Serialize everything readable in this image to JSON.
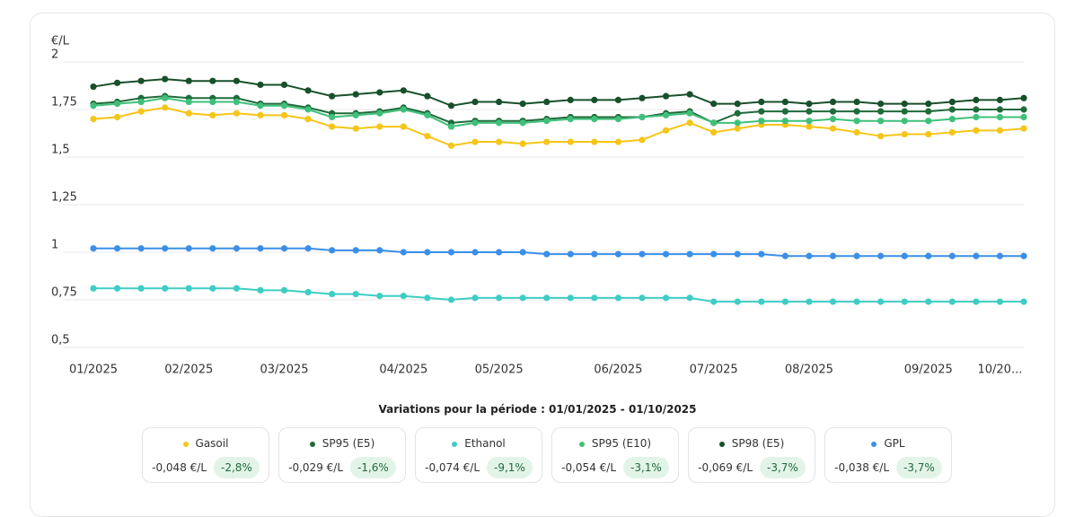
{
  "chart_data": {
    "type": "line",
    "y_label": "€/L",
    "categories": [
      "01/2025",
      null,
      null,
      null,
      "02/2025",
      null,
      null,
      null,
      "03/2025",
      null,
      null,
      null,
      null,
      "04/2025",
      null,
      null,
      null,
      "05/2025",
      null,
      null,
      null,
      null,
      "06/2025",
      null,
      null,
      null,
      "07/2025",
      null,
      null,
      null,
      "08/2025",
      null,
      null,
      null,
      null,
      "09/2025",
      null,
      null,
      "10/20...",
      null
    ],
    "ylim": [
      0.5,
      2
    ],
    "yticks": [
      {
        "value": 0.5,
        "label": "0,5"
      },
      {
        "value": 0.75,
        "label": "0,75"
      },
      1,
      {
        "value": 1.25,
        "label": "1,25"
      },
      {
        "value": 1.5,
        "label": "1,5"
      },
      {
        "value": 1.75,
        "label": "1,75"
      },
      2
    ],
    "grid": true,
    "series": [
      {
        "name": "Gasoil",
        "color": "#f5c518",
        "values": [
          1.7,
          1.71,
          1.74,
          1.76,
          1.73,
          1.72,
          1.73,
          1.72,
          1.72,
          1.7,
          1.66,
          1.65,
          1.66,
          1.66,
          1.61,
          1.56,
          1.58,
          1.58,
          1.57,
          1.58,
          1.58,
          1.58,
          1.58,
          1.59,
          1.64,
          1.68,
          1.63,
          1.65,
          1.67,
          1.67,
          1.66,
          1.65,
          1.63,
          1.61,
          1.62,
          1.62,
          1.63,
          1.64,
          1.64,
          1.65
        ]
      },
      {
        "name": "SP95 (E5)",
        "color": "#1f6b3a",
        "values": [
          1.78,
          1.79,
          1.81,
          1.82,
          1.81,
          1.81,
          1.81,
          1.78,
          1.78,
          1.76,
          1.73,
          1.73,
          1.74,
          1.76,
          1.73,
          1.68,
          1.69,
          1.69,
          1.69,
          1.7,
          1.71,
          1.71,
          1.71,
          1.71,
          1.73,
          1.74,
          1.68,
          1.73,
          1.74,
          1.74,
          1.74,
          1.74,
          1.74,
          1.74,
          1.74,
          1.74,
          1.75,
          1.75,
          1.75,
          1.75
        ]
      },
      {
        "name": "Ethanol",
        "color": "#3ecdc4",
        "values": [
          0.81,
          0.81,
          0.81,
          0.81,
          0.81,
          0.81,
          0.81,
          0.8,
          0.8,
          0.79,
          0.78,
          0.78,
          0.77,
          0.77,
          0.76,
          0.75,
          0.76,
          0.76,
          0.76,
          0.76,
          0.76,
          0.76,
          0.76,
          0.76,
          0.76,
          0.76,
          0.74,
          0.74,
          0.74,
          0.74,
          0.74,
          0.74,
          0.74,
          0.74,
          0.74,
          0.74,
          0.74,
          0.74,
          0.74,
          0.74
        ]
      },
      {
        "name": "SP95 (E10)",
        "color": "#3fc07a",
        "values": [
          1.77,
          1.78,
          1.79,
          1.81,
          1.79,
          1.79,
          1.79,
          1.77,
          1.77,
          1.75,
          1.71,
          1.72,
          1.73,
          1.75,
          1.72,
          1.66,
          1.68,
          1.68,
          1.68,
          1.69,
          1.7,
          1.7,
          1.7,
          1.71,
          1.72,
          1.73,
          1.68,
          1.68,
          1.69,
          1.69,
          1.69,
          1.7,
          1.69,
          1.69,
          1.69,
          1.69,
          1.7,
          1.71,
          1.71,
          1.71
        ]
      },
      {
        "name": "SP98 (E5)",
        "color": "#17502a",
        "values": [
          1.87,
          1.89,
          1.9,
          1.91,
          1.9,
          1.9,
          1.9,
          1.88,
          1.88,
          1.85,
          1.82,
          1.83,
          1.84,
          1.85,
          1.82,
          1.77,
          1.79,
          1.79,
          1.78,
          1.79,
          1.8,
          1.8,
          1.8,
          1.81,
          1.82,
          1.83,
          1.78,
          1.78,
          1.79,
          1.79,
          1.78,
          1.79,
          1.79,
          1.78,
          1.78,
          1.78,
          1.79,
          1.8,
          1.8,
          1.81
        ]
      },
      {
        "name": "GPL",
        "color": "#3b8fe8",
        "values": [
          1.02,
          1.02,
          1.02,
          1.02,
          1.02,
          1.02,
          1.02,
          1.02,
          1.02,
          1.02,
          1.01,
          1.01,
          1.01,
          1.0,
          1.0,
          1.0,
          1.0,
          1.0,
          1.0,
          0.99,
          0.99,
          0.99,
          0.99,
          0.99,
          0.99,
          0.99,
          0.99,
          0.99,
          0.99,
          0.98,
          0.98,
          0.98,
          0.98,
          0.98,
          0.98,
          0.98,
          0.98,
          0.98,
          0.98,
          0.98
        ]
      }
    ]
  },
  "summary": {
    "title": "Variations pour la période : 01/01/2025 - 01/10/2025",
    "items": [
      {
        "change": "-0,048 €/L",
        "percent": "-2,8%"
      },
      {
        "change": "-0,029 €/L",
        "percent": "-1,6%"
      },
      {
        "change": "-0,074 €/L",
        "percent": "-9,1%"
      },
      {
        "change": "-0,054 €/L",
        "percent": "-3,1%"
      },
      {
        "change": "-0,069 €/L",
        "percent": "-3,7%"
      },
      {
        "change": "-0,038 €/L",
        "percent": "-3,7%"
      }
    ]
  }
}
